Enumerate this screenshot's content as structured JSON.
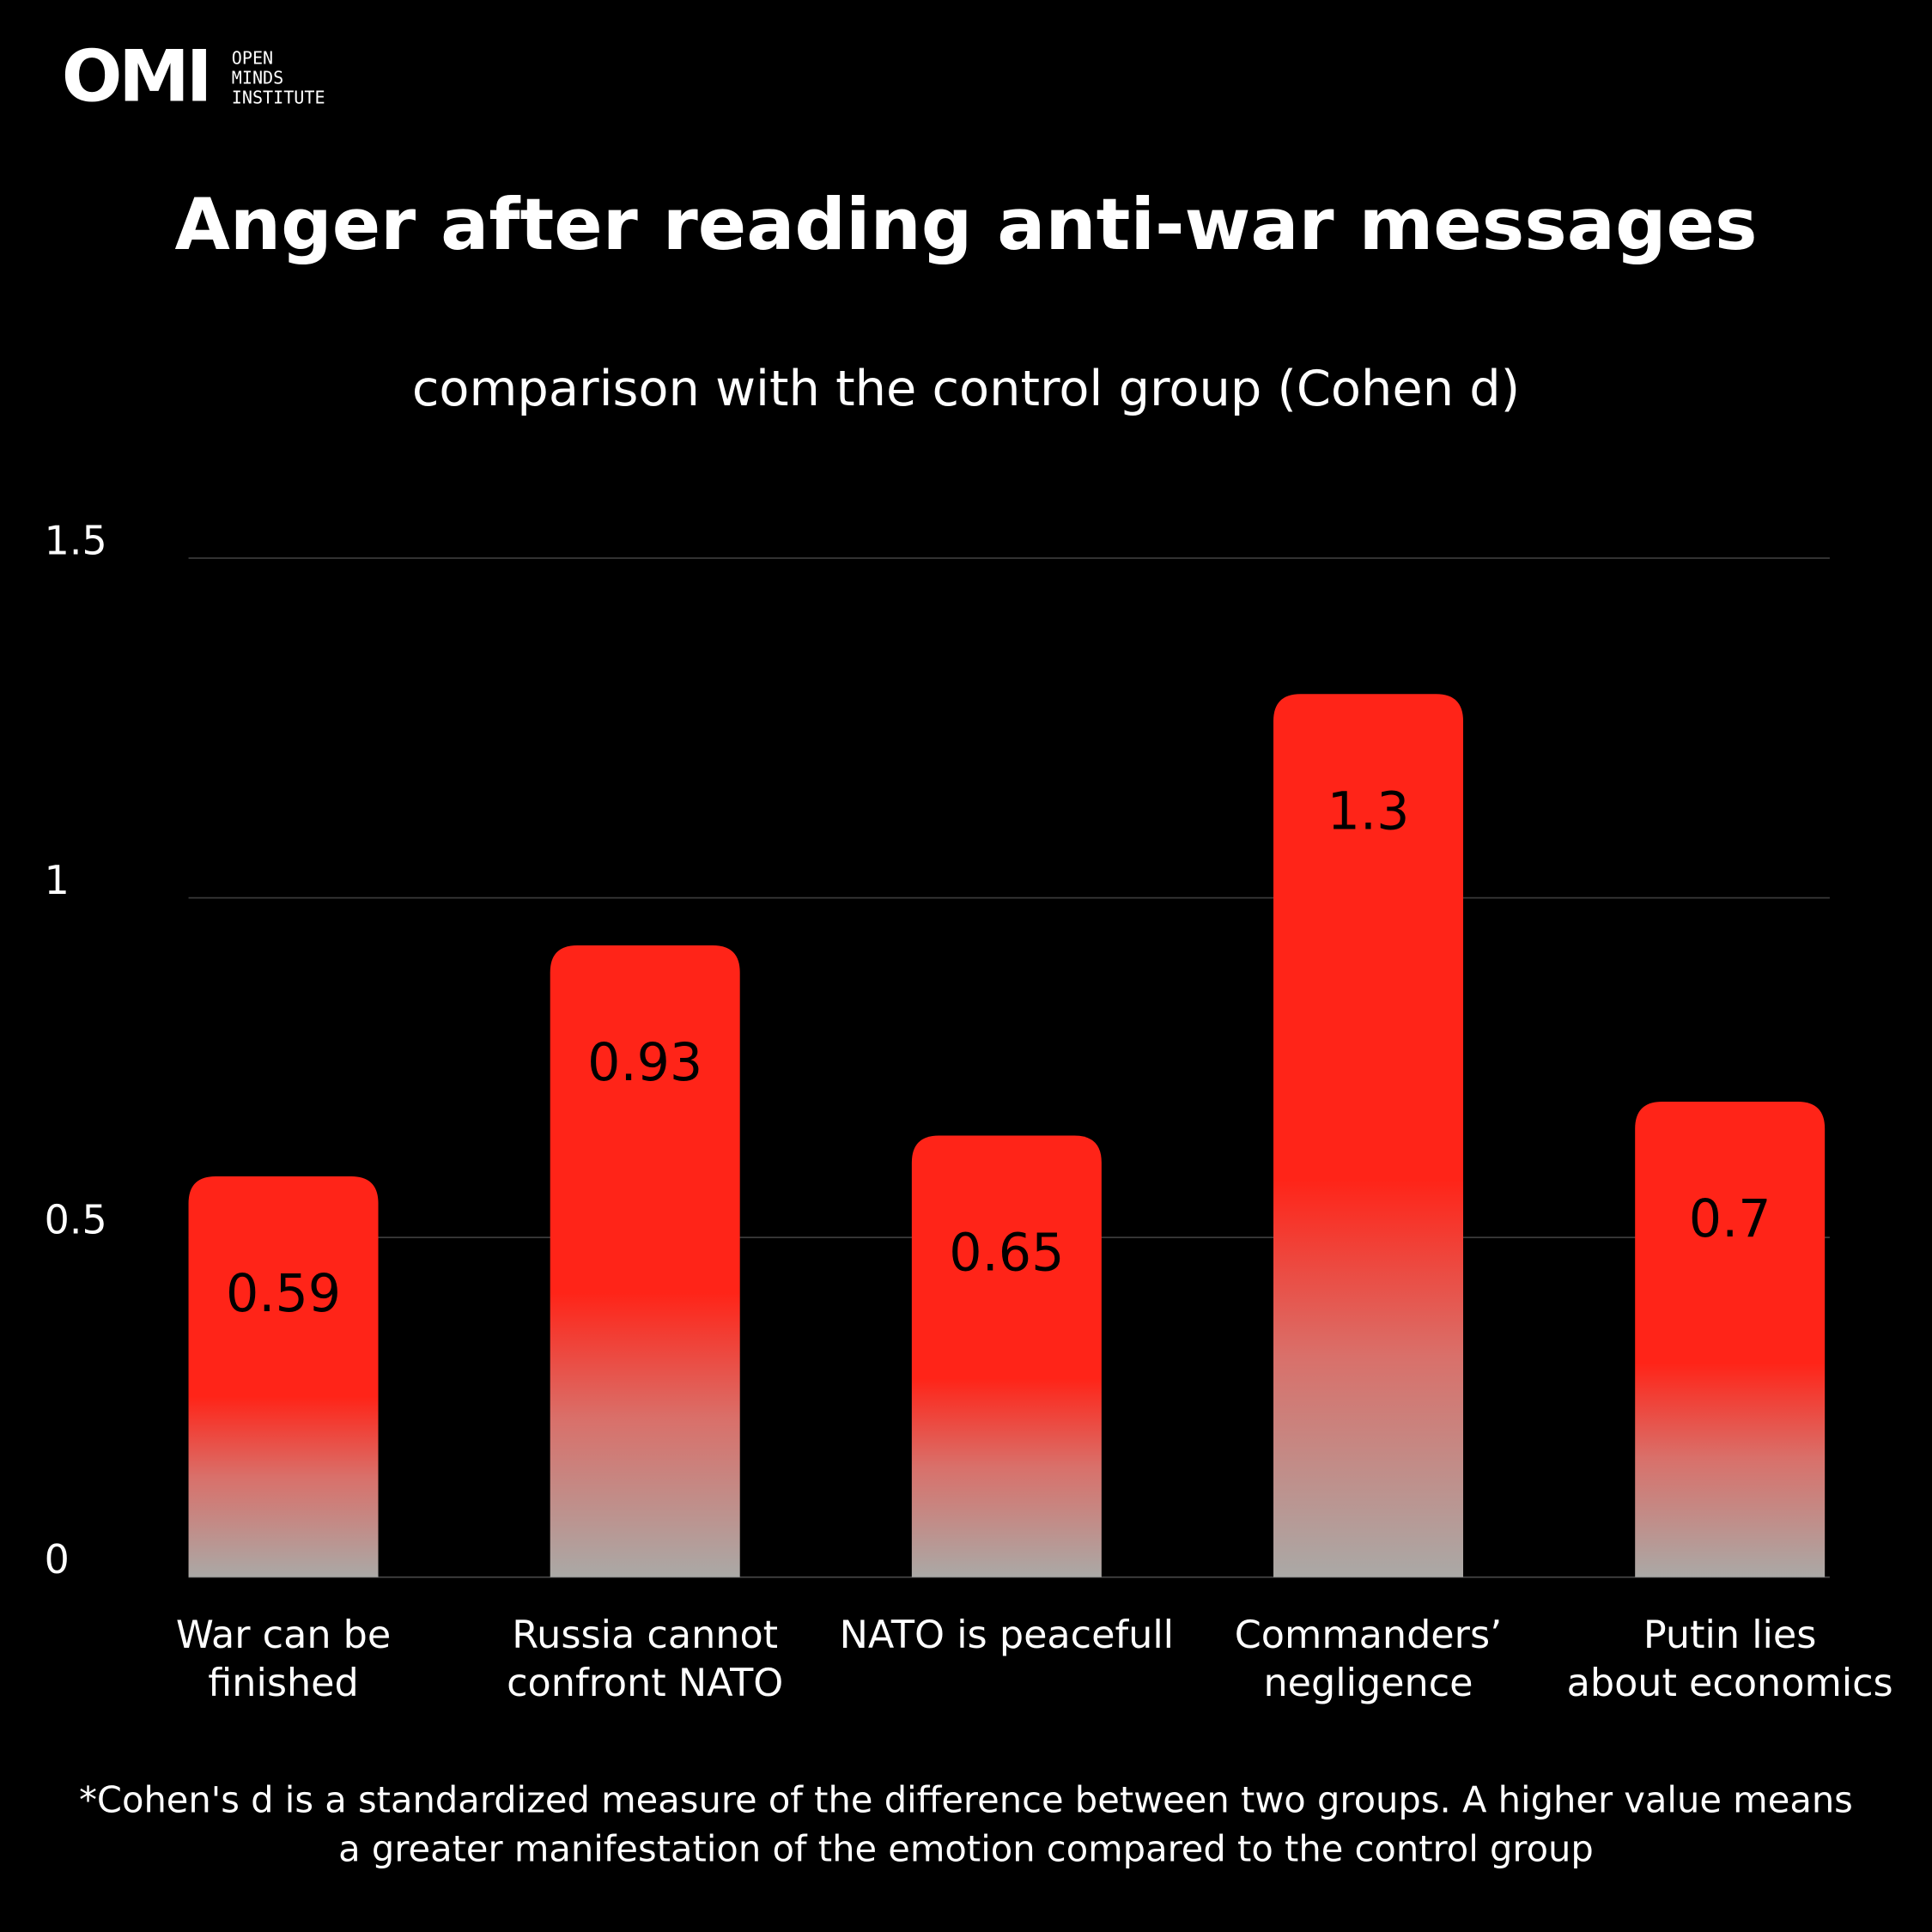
{
  "logo": {
    "mark": "OMI",
    "lines": [
      "OPEN",
      "MINDS",
      "INSTITUTE"
    ]
  },
  "chart_data": {
    "type": "bar",
    "title": "Anger after reading anti-war messages",
    "subtitle": "comparison with the control group (Cohen d)",
    "categories": [
      [
        "War can be",
        "finished"
      ],
      [
        "Russia cannot",
        "confront NATO"
      ],
      [
        "NATO is peacefull"
      ],
      [
        "Commanders’",
        "negligence"
      ],
      [
        "Putin lies",
        "about economics"
      ]
    ],
    "values": [
      0.59,
      0.93,
      0.65,
      1.3,
      0.7
    ],
    "color": "#ff2418",
    "ylim": [
      0,
      1.5
    ],
    "yticks": [
      0,
      0.5,
      1,
      1.5
    ],
    "grid": true
  },
  "footnote": [
    "*Cohen's d is a standardized measure of the difference between two groups. A higher value means",
    "a greater manifestation of the emotion compared to the control group"
  ]
}
